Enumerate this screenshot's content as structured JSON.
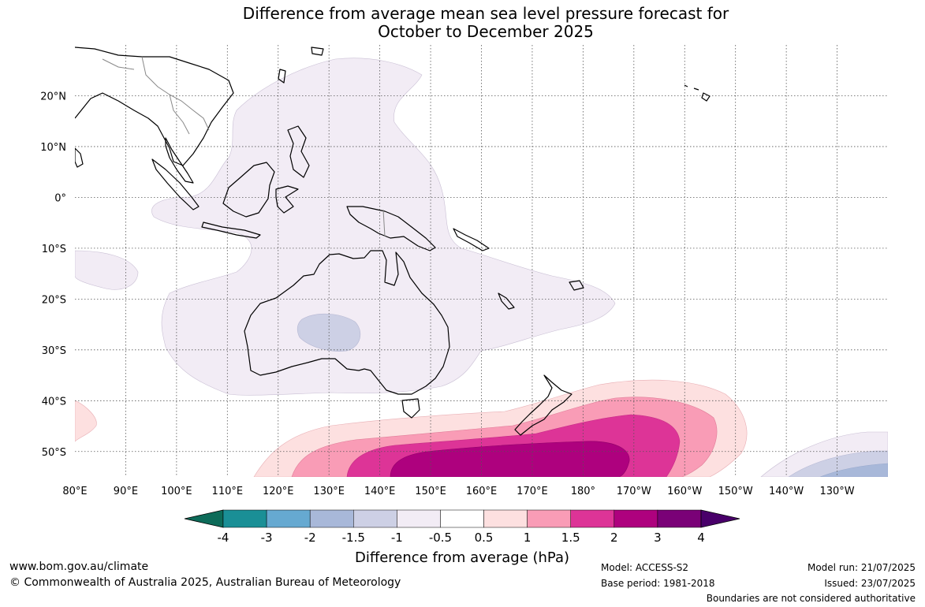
{
  "title": {
    "line1": "Difference from average mean sea level pressure forecast for",
    "line2": "October to December 2025"
  },
  "map": {
    "lat_labels": [
      "20°N",
      "10°N",
      "0°",
      "10°S",
      "20°S",
      "30°S",
      "40°S",
      "50°S"
    ],
    "lon_labels": [
      "80°E",
      "90°E",
      "100°E",
      "110°E",
      "120°E",
      "130°E",
      "140°E",
      "150°E",
      "160°E",
      "170°E",
      "180°",
      "170°W",
      "160°W",
      "150°W",
      "140°W",
      "130°W"
    ],
    "extent": {
      "lon_min": 80,
      "lon_max": 240,
      "lat_min": -55,
      "lat_max": 30
    },
    "gridlines": true
  },
  "colorbar": {
    "title": "Difference from average (hPa)",
    "tick_labels": [
      "-4",
      "-3",
      "-2",
      "-1.5",
      "-1",
      "-0.5",
      "0.5",
      "1",
      "1.5",
      "2",
      "3",
      "4"
    ],
    "colors": [
      "#0d6b59",
      "#1a8f96",
      "#66a9d1",
      "#a8b8d9",
      "#cdd0e5",
      "#f2ecf5",
      "#ffffff",
      "#fde0e0",
      "#f99cb6",
      "#dd3497",
      "#ae017e",
      "#7a0177",
      "#49006a"
    ]
  },
  "footer": {
    "website": "www.bom.gov.au/climate",
    "copyright": "© Commonwealth of Australia 2025, Australian Bureau of Meteorology",
    "model": "Model: ACCESS-S2",
    "base_period": "Base period: 1981-2018",
    "model_run": "Model run: 21/07/2025",
    "issued": "Issued: 23/07/2025",
    "disclaimer": "Boundaries are not considered authoritative"
  }
}
